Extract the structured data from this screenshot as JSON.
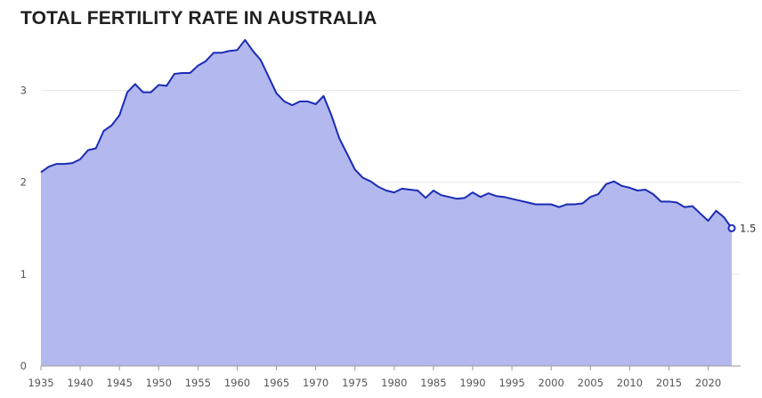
{
  "chart_data": {
    "type": "area",
    "title": "TOTAL FERTILITY RATE IN AUSTRALIA",
    "xlabel": "",
    "ylabel": "",
    "xlim": [
      1935,
      2023
    ],
    "ylim": [
      0,
      3.5
    ],
    "x_ticks": [
      1935,
      1940,
      1945,
      1950,
      1955,
      1960,
      1965,
      1970,
      1975,
      1980,
      1985,
      1990,
      1995,
      2000,
      2005,
      2010,
      2015,
      2020
    ],
    "y_ticks": [
      0,
      1,
      2,
      3
    ],
    "grid": true,
    "end_label": "1.5",
    "colors": {
      "line": "#1a2bb5",
      "fill": "#b3b8ee",
      "grid": "#e6e6e6",
      "axis": "#999999"
    },
    "x": [
      1935,
      1936,
      1937,
      1938,
      1939,
      1940,
      1941,
      1942,
      1943,
      1944,
      1945,
      1946,
      1947,
      1948,
      1949,
      1950,
      1951,
      1952,
      1953,
      1954,
      1955,
      1956,
      1957,
      1958,
      1959,
      1960,
      1961,
      1962,
      1963,
      1964,
      1965,
      1966,
      1967,
      1968,
      1969,
      1970,
      1971,
      1972,
      1973,
      1974,
      1975,
      1976,
      1977,
      1978,
      1979,
      1980,
      1981,
      1982,
      1983,
      1984,
      1985,
      1986,
      1987,
      1988,
      1989,
      1990,
      1991,
      1992,
      1993,
      1994,
      1995,
      1996,
      1997,
      1998,
      1999,
      2000,
      2001,
      2002,
      2003,
      2004,
      2005,
      2006,
      2007,
      2008,
      2009,
      2010,
      2011,
      2012,
      2013,
      2014,
      2015,
      2016,
      2017,
      2018,
      2019,
      2020,
      2021,
      2022,
      2023
    ],
    "values": [
      2.11,
      2.17,
      2.2,
      2.2,
      2.21,
      2.25,
      2.35,
      2.37,
      2.56,
      2.62,
      2.73,
      2.98,
      3.07,
      2.98,
      2.98,
      3.06,
      3.05,
      3.18,
      3.19,
      3.19,
      3.27,
      3.32,
      3.41,
      3.41,
      3.43,
      3.44,
      3.55,
      3.43,
      3.33,
      3.15,
      2.97,
      2.88,
      2.84,
      2.88,
      2.88,
      2.85,
      2.94,
      2.73,
      2.48,
      2.31,
      2.14,
      2.05,
      2.01,
      1.95,
      1.91,
      1.89,
      1.93,
      1.92,
      1.91,
      1.83,
      1.91,
      1.86,
      1.84,
      1.82,
      1.83,
      1.89,
      1.84,
      1.88,
      1.85,
      1.84,
      1.82,
      1.8,
      1.78,
      1.76,
      1.76,
      1.76,
      1.73,
      1.76,
      1.76,
      1.77,
      1.84,
      1.87,
      1.98,
      2.01,
      1.96,
      1.94,
      1.91,
      1.92,
      1.87,
      1.79,
      1.79,
      1.78,
      1.73,
      1.74,
      1.66,
      1.58,
      1.69,
      1.62,
      1.5
    ]
  }
}
